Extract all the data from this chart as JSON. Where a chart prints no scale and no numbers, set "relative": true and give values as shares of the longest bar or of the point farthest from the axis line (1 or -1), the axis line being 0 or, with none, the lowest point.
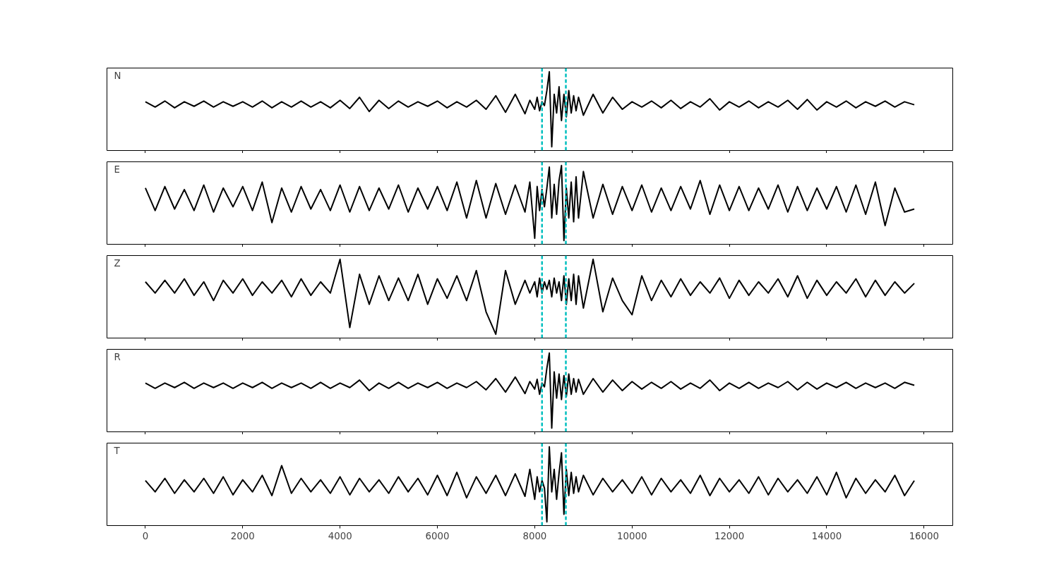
{
  "chart_data": [
    {
      "type": "line",
      "title": "N",
      "relative": true,
      "xlim": [
        -790,
        16590
      ],
      "xticks": [
        0,
        2000,
        4000,
        6000,
        8000,
        10000,
        12000,
        14000,
        16000
      ],
      "tick_labels": false,
      "ref_lines": [
        {
          "axis": "x",
          "value": 8150,
          "color": "#00bfbf",
          "line_style": "dashed"
        },
        {
          "axis": "x",
          "value": 8640,
          "color": "#00bfbf",
          "line_style": "dashed"
        }
      ],
      "x": [
        0,
        200,
        400,
        600,
        800,
        1000,
        1200,
        1400,
        1600,
        1800,
        2000,
        2200,
        2400,
        2600,
        2800,
        3000,
        3200,
        3400,
        3600,
        3800,
        4000,
        4200,
        4400,
        4600,
        4800,
        5000,
        5200,
        5400,
        5600,
        5800,
        6000,
        6200,
        6400,
        6600,
        6800,
        7000,
        7200,
        7400,
        7600,
        7800,
        7900,
        8000,
        8050,
        8100,
        8150,
        8200,
        8250,
        8300,
        8350,
        8400,
        8450,
        8500,
        8550,
        8600,
        8650,
        8700,
        8750,
        8800,
        8850,
        8900,
        9000,
        9200,
        9400,
        9600,
        9800,
        10000,
        10200,
        10400,
        10600,
        10800,
        11000,
        11200,
        11400,
        11600,
        11800,
        12000,
        12200,
        12400,
        12600,
        12800,
        13000,
        13200,
        13400,
        13600,
        13800,
        14000,
        14200,
        14400,
        14600,
        14800,
        15000,
        15200,
        15400,
        15600,
        15800
      ],
      "series": [
        {
          "color": "#000000",
          "values": [
            0.6,
            0.53,
            0.61,
            0.52,
            0.6,
            0.54,
            0.61,
            0.53,
            0.6,
            0.54,
            0.6,
            0.53,
            0.61,
            0.52,
            0.6,
            0.53,
            0.61,
            0.53,
            0.6,
            0.52,
            0.62,
            0.51,
            0.66,
            0.47,
            0.62,
            0.51,
            0.61,
            0.53,
            0.6,
            0.54,
            0.61,
            0.52,
            0.6,
            0.53,
            0.62,
            0.5,
            0.68,
            0.46,
            0.7,
            0.44,
            0.62,
            0.5,
            0.66,
            0.48,
            0.6,
            0.55,
            0.75,
            1.0,
            0.0,
            0.7,
            0.45,
            0.8,
            0.35,
            0.7,
            0.4,
            0.75,
            0.45,
            0.68,
            0.48,
            0.66,
            0.42,
            0.7,
            0.45,
            0.66,
            0.5,
            0.6,
            0.53,
            0.61,
            0.52,
            0.62,
            0.51,
            0.6,
            0.53,
            0.64,
            0.49,
            0.6,
            0.53,
            0.61,
            0.52,
            0.6,
            0.53,
            0.62,
            0.5,
            0.63,
            0.49,
            0.6,
            0.53,
            0.61,
            0.52,
            0.6,
            0.54,
            0.61,
            0.53,
            0.6,
            0.56
          ]
        }
      ]
    },
    {
      "type": "line",
      "title": "E",
      "relative": true,
      "xlim": [
        -790,
        16590
      ],
      "xticks": [
        0,
        2000,
        4000,
        6000,
        8000,
        10000,
        12000,
        14000,
        16000
      ],
      "tick_labels": false,
      "ref_lines": [
        {
          "axis": "x",
          "value": 8150,
          "color": "#00bfbf",
          "line_style": "dashed"
        },
        {
          "axis": "x",
          "value": 8640,
          "color": "#00bfbf",
          "line_style": "dashed"
        }
      ],
      "x": [
        0,
        200,
        400,
        600,
        800,
        1000,
        1200,
        1400,
        1600,
        1800,
        2000,
        2200,
        2400,
        2600,
        2800,
        3000,
        3200,
        3400,
        3600,
        3800,
        4000,
        4200,
        4400,
        4600,
        4800,
        5000,
        5200,
        5400,
        5600,
        5800,
        6000,
        6200,
        6400,
        6600,
        6800,
        7000,
        7200,
        7400,
        7600,
        7800,
        7900,
        8000,
        8050,
        8100,
        8150,
        8200,
        8250,
        8300,
        8350,
        8400,
        8450,
        8500,
        8550,
        8600,
        8650,
        8700,
        8750,
        8800,
        8850,
        8900,
        9000,
        9200,
        9400,
        9600,
        9800,
        10000,
        10200,
        10400,
        10600,
        10800,
        11000,
        11200,
        11400,
        11600,
        11800,
        12000,
        12200,
        12400,
        12600,
        12800,
        13000,
        13200,
        13400,
        13600,
        13800,
        14000,
        14200,
        14400,
        14600,
        14800,
        15000,
        15200,
        15400,
        15600,
        15800
      ],
      "series": [
        {
          "color": "#000000",
          "values": [
            0.7,
            0.4,
            0.72,
            0.42,
            0.68,
            0.4,
            0.74,
            0.38,
            0.7,
            0.45,
            0.72,
            0.4,
            0.78,
            0.24,
            0.7,
            0.38,
            0.72,
            0.42,
            0.68,
            0.4,
            0.74,
            0.38,
            0.72,
            0.4,
            0.7,
            0.42,
            0.74,
            0.38,
            0.7,
            0.42,
            0.72,
            0.4,
            0.78,
            0.3,
            0.8,
            0.3,
            0.76,
            0.35,
            0.74,
            0.38,
            0.78,
            0.03,
            0.72,
            0.4,
            0.68,
            0.45,
            0.7,
            0.98,
            0.3,
            0.75,
            0.35,
            0.8,
            1.0,
            0.0,
            0.7,
            0.3,
            0.78,
            0.25,
            0.85,
            0.3,
            0.92,
            0.3,
            0.75,
            0.35,
            0.72,
            0.4,
            0.74,
            0.38,
            0.7,
            0.4,
            0.72,
            0.42,
            0.8,
            0.35,
            0.74,
            0.4,
            0.72,
            0.4,
            0.7,
            0.42,
            0.74,
            0.38,
            0.72,
            0.4,
            0.7,
            0.42,
            0.72,
            0.38,
            0.74,
            0.35,
            0.78,
            0.2,
            0.7,
            0.38,
            0.42
          ]
        }
      ]
    },
    {
      "type": "line",
      "title": "Z",
      "relative": true,
      "xlim": [
        -790,
        16590
      ],
      "xticks": [
        0,
        2000,
        4000,
        6000,
        8000,
        10000,
        12000,
        14000,
        16000
      ],
      "tick_labels": false,
      "ref_lines": [
        {
          "axis": "x",
          "value": 8150,
          "color": "#00bfbf",
          "line_style": "dashed"
        },
        {
          "axis": "x",
          "value": 8640,
          "color": "#00bfbf",
          "line_style": "dashed"
        }
      ],
      "x": [
        0,
        200,
        400,
        600,
        800,
        1000,
        1200,
        1400,
        1600,
        1800,
        2000,
        2200,
        2400,
        2600,
        2800,
        3000,
        3200,
        3400,
        3600,
        3800,
        4000,
        4200,
        4400,
        4600,
        4800,
        5000,
        5200,
        5400,
        5600,
        5800,
        6000,
        6200,
        6400,
        6600,
        6800,
        7000,
        7200,
        7400,
        7600,
        7800,
        7900,
        8000,
        8050,
        8100,
        8150,
        8200,
        8250,
        8300,
        8350,
        8400,
        8450,
        8500,
        8550,
        8600,
        8650,
        8700,
        8750,
        8800,
        8850,
        8900,
        9000,
        9200,
        9400,
        9600,
        9800,
        10000,
        10200,
        10400,
        10600,
        10800,
        11000,
        11200,
        11400,
        11600,
        11800,
        12000,
        12200,
        12400,
        12600,
        12800,
        13000,
        13200,
        13400,
        13600,
        13800,
        14000,
        14200,
        14400,
        14600,
        14800,
        15000,
        15200,
        15400,
        15600,
        15800
      ],
      "series": [
        {
          "color": "#000000",
          "values": [
            0.7,
            0.55,
            0.72,
            0.55,
            0.74,
            0.52,
            0.7,
            0.45,
            0.72,
            0.55,
            0.74,
            0.52,
            0.7,
            0.55,
            0.72,
            0.5,
            0.74,
            0.52,
            0.7,
            0.55,
            1.0,
            0.09,
            0.8,
            0.4,
            0.78,
            0.45,
            0.75,
            0.45,
            0.8,
            0.4,
            0.74,
            0.48,
            0.78,
            0.45,
            0.85,
            0.3,
            0.0,
            0.85,
            0.4,
            0.72,
            0.55,
            0.7,
            0.5,
            0.75,
            0.55,
            0.7,
            0.6,
            0.72,
            0.5,
            0.75,
            0.55,
            0.7,
            0.45,
            0.78,
            0.4,
            0.74,
            0.45,
            0.8,
            0.4,
            0.78,
            0.35,
            1.0,
            0.3,
            0.75,
            0.45,
            0.26,
            0.78,
            0.45,
            0.72,
            0.5,
            0.74,
            0.52,
            0.7,
            0.55,
            0.75,
            0.48,
            0.72,
            0.52,
            0.7,
            0.55,
            0.74,
            0.5,
            0.78,
            0.48,
            0.72,
            0.52,
            0.7,
            0.55,
            0.74,
            0.5,
            0.72,
            0.52,
            0.7,
            0.55,
            0.68
          ]
        }
      ]
    },
    {
      "type": "line",
      "title": "R",
      "relative": true,
      "xlim": [
        -790,
        16590
      ],
      "xticks": [
        0,
        2000,
        4000,
        6000,
        8000,
        10000,
        12000,
        14000,
        16000
      ],
      "tick_labels": false,
      "ref_lines": [
        {
          "axis": "x",
          "value": 8150,
          "color": "#00bfbf",
          "line_style": "dashed"
        },
        {
          "axis": "x",
          "value": 8640,
          "color": "#00bfbf",
          "line_style": "dashed"
        }
      ],
      "x": [
        0,
        200,
        400,
        600,
        800,
        1000,
        1200,
        1400,
        1600,
        1800,
        2000,
        2200,
        2400,
        2600,
        2800,
        3000,
        3200,
        3400,
        3600,
        3800,
        4000,
        4200,
        4400,
        4600,
        4800,
        5000,
        5200,
        5400,
        5600,
        5800,
        6000,
        6200,
        6400,
        6600,
        6800,
        7000,
        7200,
        7400,
        7600,
        7800,
        7900,
        8000,
        8050,
        8100,
        8150,
        8200,
        8250,
        8300,
        8350,
        8400,
        8450,
        8500,
        8550,
        8600,
        8650,
        8700,
        8750,
        8800,
        8850,
        8900,
        9000,
        9200,
        9400,
        9600,
        9800,
        10000,
        10200,
        10400,
        10600,
        10800,
        11000,
        11200,
        11400,
        11600,
        11800,
        12000,
        12200,
        12400,
        12600,
        12800,
        13000,
        13200,
        13400,
        13600,
        13800,
        14000,
        14200,
        14400,
        14600,
        14800,
        15000,
        15200,
        15400,
        15600,
        15800
      ],
      "series": [
        {
          "color": "#000000",
          "values": [
            0.6,
            0.53,
            0.6,
            0.54,
            0.61,
            0.53,
            0.6,
            0.54,
            0.6,
            0.53,
            0.6,
            0.54,
            0.61,
            0.53,
            0.6,
            0.54,
            0.6,
            0.53,
            0.61,
            0.53,
            0.6,
            0.54,
            0.64,
            0.5,
            0.6,
            0.53,
            0.61,
            0.53,
            0.6,
            0.54,
            0.61,
            0.53,
            0.6,
            0.54,
            0.62,
            0.51,
            0.66,
            0.48,
            0.68,
            0.46,
            0.62,
            0.52,
            0.65,
            0.45,
            0.6,
            0.55,
            0.8,
            1.0,
            0.0,
            0.75,
            0.4,
            0.72,
            0.38,
            0.7,
            0.42,
            0.72,
            0.45,
            0.66,
            0.48,
            0.65,
            0.45,
            0.66,
            0.48,
            0.64,
            0.5,
            0.62,
            0.52,
            0.61,
            0.53,
            0.62,
            0.52,
            0.6,
            0.53,
            0.64,
            0.5,
            0.6,
            0.53,
            0.61,
            0.53,
            0.6,
            0.54,
            0.62,
            0.51,
            0.61,
            0.52,
            0.6,
            0.54,
            0.61,
            0.53,
            0.6,
            0.54,
            0.6,
            0.53,
            0.61,
            0.57
          ]
        }
      ]
    },
    {
      "type": "line",
      "title": "T",
      "relative": true,
      "xlim": [
        -790,
        16590
      ],
      "xticks": [
        0,
        2000,
        4000,
        6000,
        8000,
        10000,
        12000,
        14000,
        16000
      ],
      "tick_labels": "x",
      "ref_lines": [
        {
          "axis": "x",
          "value": 8150,
          "color": "#00bfbf",
          "line_style": "dashed"
        },
        {
          "axis": "x",
          "value": 8640,
          "color": "#00bfbf",
          "line_style": "dashed"
        }
      ],
      "x": [
        0,
        200,
        400,
        600,
        800,
        1000,
        1200,
        1400,
        1600,
        1800,
        2000,
        2200,
        2400,
        2600,
        2800,
        3000,
        3200,
        3400,
        3600,
        3800,
        4000,
        4200,
        4400,
        4600,
        4800,
        5000,
        5200,
        5400,
        5600,
        5800,
        6000,
        6200,
        6400,
        6600,
        6800,
        7000,
        7200,
        7400,
        7600,
        7800,
        7900,
        8000,
        8050,
        8100,
        8150,
        8200,
        8250,
        8300,
        8350,
        8400,
        8450,
        8500,
        8550,
        8600,
        8650,
        8700,
        8750,
        8800,
        8850,
        8900,
        9000,
        9200,
        9400,
        9600,
        9800,
        10000,
        10200,
        10400,
        10600,
        10800,
        11000,
        11200,
        11400,
        11600,
        11800,
        12000,
        12200,
        12400,
        12600,
        12800,
        13000,
        13200,
        13400,
        13600,
        13800,
        14000,
        14200,
        14400,
        14600,
        14800,
        15000,
        15200,
        15400,
        15600,
        15800
      ],
      "series": [
        {
          "color": "#000000",
          "values": [
            0.55,
            0.4,
            0.58,
            0.38,
            0.56,
            0.4,
            0.58,
            0.38,
            0.6,
            0.36,
            0.56,
            0.4,
            0.62,
            0.35,
            0.75,
            0.38,
            0.58,
            0.4,
            0.56,
            0.38,
            0.6,
            0.36,
            0.58,
            0.4,
            0.56,
            0.38,
            0.6,
            0.4,
            0.58,
            0.36,
            0.62,
            0.35,
            0.66,
            0.32,
            0.6,
            0.38,
            0.62,
            0.35,
            0.64,
            0.34,
            0.7,
            0.3,
            0.6,
            0.4,
            0.55,
            0.45,
            0.0,
            1.0,
            0.4,
            0.7,
            0.3,
            0.65,
            0.92,
            0.1,
            0.7,
            0.35,
            0.66,
            0.38,
            0.6,
            0.4,
            0.62,
            0.36,
            0.58,
            0.4,
            0.56,
            0.38,
            0.6,
            0.36,
            0.58,
            0.4,
            0.56,
            0.38,
            0.62,
            0.35,
            0.58,
            0.4,
            0.56,
            0.38,
            0.6,
            0.36,
            0.58,
            0.4,
            0.56,
            0.38,
            0.6,
            0.36,
            0.66,
            0.32,
            0.58,
            0.38,
            0.56,
            0.4,
            0.62,
            0.35,
            0.55
          ]
        }
      ]
    }
  ]
}
